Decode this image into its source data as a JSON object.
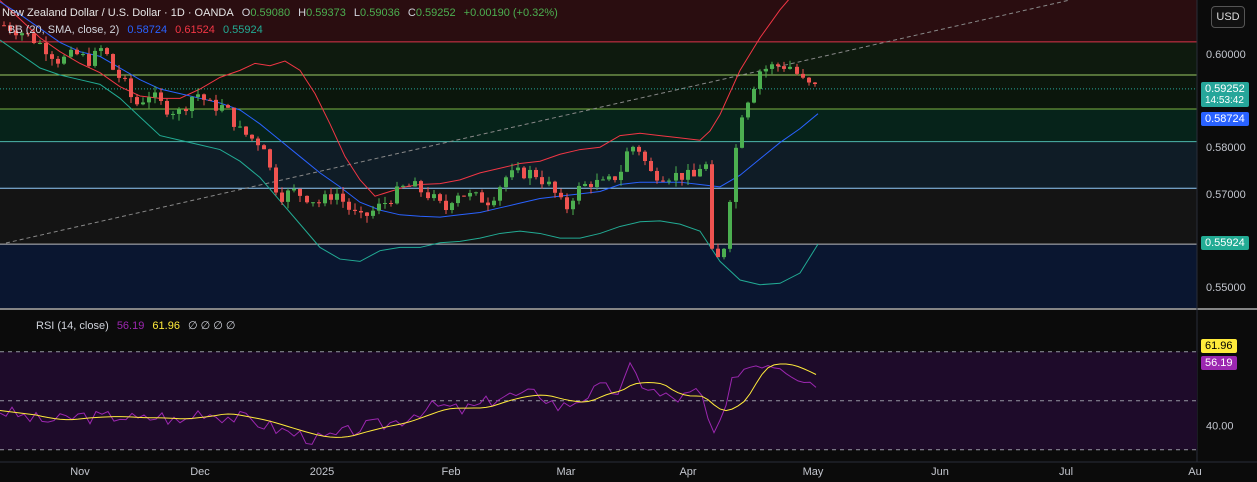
{
  "header": {
    "symbol": "New Zealand Dollar / U.S. Dollar · 1D · OANDA",
    "o_label": "O",
    "o": "0.59080",
    "h_label": "H",
    "h": "0.59373",
    "l_label": "L",
    "l": "0.59036",
    "c_label": "C",
    "c": "0.59252",
    "change": "+0.00190 (+0.32%)"
  },
  "bb_legend": {
    "label": "BB (20, SMA, close, 2)",
    "basis": "0.58724",
    "upper": "0.61524",
    "lower": "0.55924"
  },
  "rsi_legend": {
    "label": "RSI (14, close)",
    "rsi": "56.19",
    "ma": "61.96",
    "extra": "∅ ∅ ∅ ∅"
  },
  "currency_button": "USD",
  "badges": {
    "last": "0.59252",
    "countdown": "14:53:42",
    "basis": "0.58724",
    "lower": "0.55924",
    "rsi_ma": "61.96",
    "rsi": "56.19"
  },
  "colors": {
    "up": "#26a69a",
    "upBright": "#4caf50",
    "down": "#ef5350",
    "upperBand": "#f23645",
    "basis": "#2962ff",
    "lowerBand": "#22ab94",
    "rsi": "#9c27b0",
    "rsiMa": "#ffeb3b"
  },
  "chart_data": [
    {
      "type": "candlestick",
      "title": "New Zealand Dollar / U.S. Dollar · 1D · OANDA",
      "y_ticks": [
        "0.60000",
        "0.59000",
        "0.58000",
        "0.57000",
        "0.56000",
        "0.55000"
      ],
      "ylim": [
        0.5455,
        0.6116
      ],
      "x_ticks": [
        "Nov",
        "Dec",
        "2025",
        "Feb",
        "Mar",
        "Apr",
        "May",
        "Jun",
        "Jul",
        "Au"
      ],
      "date_range": [
        "2024-10-20",
        "2025-05-02"
      ],
      "candles": [],
      "upper_band": [
        [
          0,
          0.6115
        ],
        [
          20,
          0.6075
        ],
        [
          40,
          0.6035
        ],
        [
          60,
          0.6005
        ],
        [
          80,
          0.598
        ],
        [
          100,
          0.596
        ],
        [
          120,
          0.593
        ],
        [
          140,
          0.591
        ],
        [
          160,
          0.5905
        ],
        [
          180,
          0.5905
        ],
        [
          200,
          0.5925
        ],
        [
          220,
          0.595
        ],
        [
          240,
          0.5965
        ],
        [
          255,
          0.598
        ],
        [
          270,
          0.5975
        ],
        [
          285,
          0.5985
        ],
        [
          300,
          0.5965
        ],
        [
          315,
          0.5915
        ],
        [
          330,
          0.585
        ],
        [
          345,
          0.578
        ],
        [
          360,
          0.573
        ],
        [
          375,
          0.5695
        ],
        [
          390,
          0.5705
        ],
        [
          405,
          0.5715
        ],
        [
          420,
          0.572
        ],
        [
          440,
          0.5722
        ],
        [
          460,
          0.573
        ],
        [
          480,
          0.5745
        ],
        [
          500,
          0.5755
        ],
        [
          520,
          0.5765
        ],
        [
          540,
          0.577
        ],
        [
          560,
          0.5785
        ],
        [
          580,
          0.5795
        ],
        [
          600,
          0.58
        ],
        [
          620,
          0.5825
        ],
        [
          640,
          0.583
        ],
        [
          660,
          0.5825
        ],
        [
          680,
          0.582
        ],
        [
          700,
          0.5815
        ],
        [
          710,
          0.5835
        ],
        [
          720,
          0.587
        ],
        [
          740,
          0.5965
        ],
        [
          760,
          0.6035
        ],
        [
          780,
          0.6095
        ],
        [
          790,
          0.612
        ]
      ],
      "basis": [
        [
          0,
          0.6112
        ],
        [
          20,
          0.6085
        ],
        [
          40,
          0.6055
        ],
        [
          60,
          0.6025
        ],
        [
          80,
          0.6005
        ],
        [
          100,
          0.5995
        ],
        [
          120,
          0.597
        ],
        [
          140,
          0.5945
        ],
        [
          160,
          0.5925
        ],
        [
          180,
          0.5915
        ],
        [
          200,
          0.5905
        ],
        [
          220,
          0.5895
        ],
        [
          240,
          0.588
        ],
        [
          260,
          0.585
        ],
        [
          280,
          0.5815
        ],
        [
          300,
          0.578
        ],
        [
          320,
          0.5745
        ],
        [
          340,
          0.5715
        ],
        [
          360,
          0.5682
        ],
        [
          380,
          0.5665
        ],
        [
          400,
          0.5655
        ],
        [
          420,
          0.5652
        ],
        [
          440,
          0.565
        ],
        [
          460,
          0.5655
        ],
        [
          480,
          0.566
        ],
        [
          500,
          0.567
        ],
        [
          520,
          0.568
        ],
        [
          540,
          0.569
        ],
        [
          560,
          0.5695
        ],
        [
          580,
          0.57
        ],
        [
          600,
          0.5705
        ],
        [
          620,
          0.572
        ],
        [
          640,
          0.5725
        ],
        [
          660,
          0.5725
        ],
        [
          680,
          0.5725
        ],
        [
          700,
          0.572
        ],
        [
          720,
          0.5715
        ],
        [
          740,
          0.574
        ],
        [
          760,
          0.5775
        ],
        [
          780,
          0.581
        ],
        [
          800,
          0.584
        ],
        [
          818,
          0.5872
        ]
      ],
      "lower_band": [
        [
          0,
          0.603
        ],
        [
          20,
          0.6
        ],
        [
          40,
          0.597
        ],
        [
          60,
          0.5955
        ],
        [
          80,
          0.5945
        ],
        [
          100,
          0.5935
        ],
        [
          120,
          0.5905
        ],
        [
          140,
          0.5865
        ],
        [
          160,
          0.5825
        ],
        [
          180,
          0.5815
        ],
        [
          200,
          0.5805
        ],
        [
          220,
          0.5795
        ],
        [
          240,
          0.577
        ],
        [
          260,
          0.5735
        ],
        [
          280,
          0.5685
        ],
        [
          300,
          0.5635
        ],
        [
          320,
          0.5585
        ],
        [
          340,
          0.556
        ],
        [
          360,
          0.5555
        ],
        [
          380,
          0.5578
        ],
        [
          400,
          0.5585
        ],
        [
          420,
          0.5585
        ],
        [
          440,
          0.5595
        ],
        [
          460,
          0.5598
        ],
        [
          480,
          0.5605
        ],
        [
          500,
          0.5615
        ],
        [
          520,
          0.562
        ],
        [
          540,
          0.5615
        ],
        [
          560,
          0.5605
        ],
        [
          580,
          0.5605
        ],
        [
          600,
          0.5615
        ],
        [
          620,
          0.563
        ],
        [
          640,
          0.564
        ],
        [
          660,
          0.5642
        ],
        [
          680,
          0.5635
        ],
        [
          700,
          0.562
        ],
        [
          720,
          0.5555
        ],
        [
          740,
          0.5515
        ],
        [
          760,
          0.5505
        ],
        [
          780,
          0.5508
        ],
        [
          800,
          0.553
        ],
        [
          818,
          0.5592
        ]
      ]
    },
    {
      "type": "line",
      "title": "RSI (14, close)",
      "y_ticks": [
        "40.00"
      ],
      "ylim": [
        25,
        85
      ],
      "levels": [
        70,
        50,
        30
      ],
      "series": [
        {
          "name": "RSI",
          "values": []
        },
        {
          "name": "MA",
          "values": []
        }
      ]
    }
  ]
}
